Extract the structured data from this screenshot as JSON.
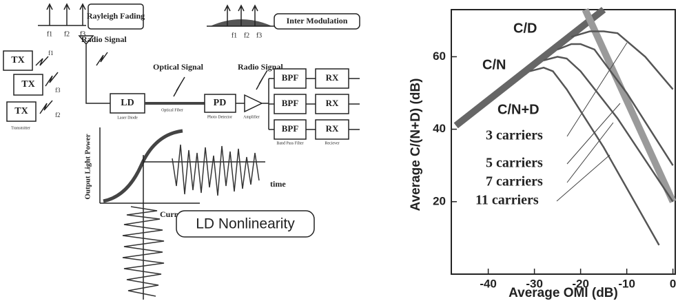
{
  "diagram": {
    "rayleigh_fading": "Rayleigh Fading",
    "rayleigh_freqs": [
      "f1",
      "f2",
      "f3"
    ],
    "inter_modulation": "Inter Modulation",
    "intermod_freqs": [
      "f1",
      "f2",
      "f3"
    ],
    "transmitters": [
      "TX",
      "TX",
      "TX"
    ],
    "tx_freqs": [
      "f1",
      "f3",
      "f2"
    ],
    "transmitter_label": "Transmitter",
    "radio_signal_in": "Radio Signal",
    "optical_signal": "Optical Signal",
    "radio_signal_out": "Radio Signal",
    "ld": "LD",
    "ld_label": "Laser Diode",
    "fiber_label": "Optical Fiber",
    "pd": "PD",
    "pd_label": "Photo Detector",
    "amp_label": "Amplifier",
    "bpf": [
      "BPF",
      "BPF",
      "BPF"
    ],
    "bpf_label": "Band Pass Filter",
    "rx": [
      "RX",
      "RX",
      "RX"
    ],
    "rx_label": "Reciever",
    "output_light_power": "Output Light Power",
    "current": "Current",
    "time": "time",
    "ld_nonlinearity": "LD Nonlinearity"
  },
  "chart_data": {
    "type": "line",
    "x_label": "Average OMI (dB)",
    "y_label": "Average C/(N+D)  (dB)",
    "xlim": [
      -48,
      0.5
    ],
    "ylim": [
      0,
      73
    ],
    "xticks": [
      -40,
      -30,
      -20,
      -10,
      0
    ],
    "yticks": [
      20,
      40,
      60
    ],
    "annotation": "C/N+D",
    "series": [
      {
        "name": "C/N",
        "color": "#666666",
        "width": 10,
        "x": [
          -47,
          -15
        ],
        "values": [
          41,
          73
        ]
      },
      {
        "name": "C/D",
        "color": "#9a9a9a",
        "width": 10,
        "x": [
          -19,
          0
        ],
        "values": [
          73,
          20
        ]
      },
      {
        "name": "3 carriers",
        "color": "#555555",
        "width": 2.5,
        "x": [
          -22,
          -18,
          -15,
          -12,
          -6,
          0
        ],
        "values": [
          65.5,
          67,
          67,
          66.5,
          60,
          51
        ]
      },
      {
        "name": "5 carriers",
        "color": "#555555",
        "width": 2.5,
        "x": [
          -25,
          -22,
          -20,
          -17,
          -10,
          0
        ],
        "values": [
          62,
          63.5,
          63.5,
          62,
          50,
          30
        ]
      },
      {
        "name": "7 carriers",
        "color": "#555555",
        "width": 2.5,
        "x": [
          -28,
          -25,
          -23,
          -20,
          -12,
          0
        ],
        "values": [
          59,
          60,
          59.5,
          56,
          43,
          20
        ]
      },
      {
        "name": "11 carriers",
        "color": "#555555",
        "width": 2.5,
        "x": [
          -31,
          -28,
          -26,
          -23,
          -15,
          -3
        ],
        "values": [
          56,
          57,
          56,
          51,
          35,
          8
        ]
      }
    ]
  }
}
